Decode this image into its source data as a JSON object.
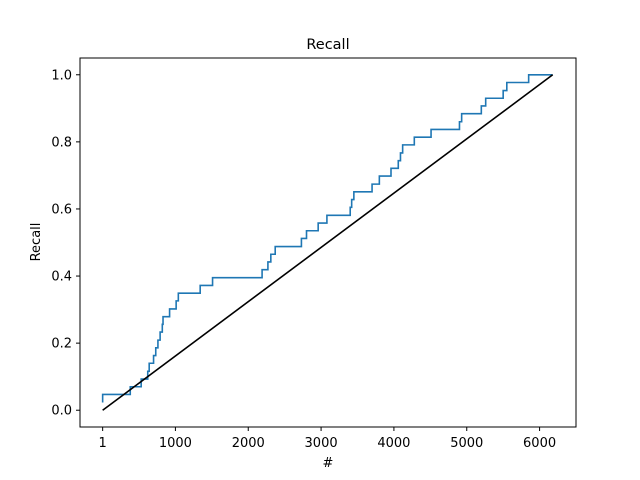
{
  "chart_data": {
    "type": "line",
    "title": "Recall",
    "xlabel": "#",
    "ylabel": "Recall",
    "xlim": [
      -310,
      6500
    ],
    "ylim": [
      -0.05,
      1.05
    ],
    "xticks": [
      1,
      1000,
      2000,
      3000,
      4000,
      5000,
      6000
    ],
    "xtick_labels": [
      "1",
      "1000",
      "2000",
      "3000",
      "4000",
      "5000",
      "6000"
    ],
    "yticks": [
      0.0,
      0.2,
      0.4,
      0.6,
      0.8,
      1.0
    ],
    "ytick_labels": [
      "0.0",
      "0.2",
      "0.4",
      "0.6",
      "0.8",
      "1.0"
    ],
    "grid": false,
    "series": [
      {
        "style": "step",
        "color": "#1f77b4",
        "points": [
          [
            1,
            0.023
          ],
          [
            1,
            0.047
          ],
          [
            380,
            0.047
          ],
          [
            380,
            0.07
          ],
          [
            530,
            0.07
          ],
          [
            530,
            0.093
          ],
          [
            620,
            0.093
          ],
          [
            620,
            0.116
          ],
          [
            640,
            0.116
          ],
          [
            640,
            0.14
          ],
          [
            700,
            0.14
          ],
          [
            700,
            0.163
          ],
          [
            730,
            0.163
          ],
          [
            730,
            0.186
          ],
          [
            760,
            0.186
          ],
          [
            760,
            0.209
          ],
          [
            790,
            0.209
          ],
          [
            790,
            0.233
          ],
          [
            820,
            0.233
          ],
          [
            820,
            0.256
          ],
          [
            830,
            0.256
          ],
          [
            830,
            0.279
          ],
          [
            920,
            0.279
          ],
          [
            920,
            0.302
          ],
          [
            1010,
            0.302
          ],
          [
            1010,
            0.326
          ],
          [
            1040,
            0.326
          ],
          [
            1040,
            0.349
          ],
          [
            1340,
            0.349
          ],
          [
            1340,
            0.372
          ],
          [
            1510,
            0.372
          ],
          [
            1510,
            0.395
          ],
          [
            2190,
            0.395
          ],
          [
            2190,
            0.419
          ],
          [
            2270,
            0.419
          ],
          [
            2270,
            0.442
          ],
          [
            2310,
            0.442
          ],
          [
            2310,
            0.465
          ],
          [
            2370,
            0.465
          ],
          [
            2370,
            0.488
          ],
          [
            2730,
            0.488
          ],
          [
            2730,
            0.512
          ],
          [
            2800,
            0.512
          ],
          [
            2800,
            0.535
          ],
          [
            2960,
            0.535
          ],
          [
            2960,
            0.558
          ],
          [
            3080,
            0.558
          ],
          [
            3080,
            0.581
          ],
          [
            3400,
            0.581
          ],
          [
            3400,
            0.605
          ],
          [
            3420,
            0.605
          ],
          [
            3420,
            0.628
          ],
          [
            3450,
            0.628
          ],
          [
            3450,
            0.651
          ],
          [
            3700,
            0.651
          ],
          [
            3700,
            0.674
          ],
          [
            3800,
            0.674
          ],
          [
            3800,
            0.698
          ],
          [
            3960,
            0.698
          ],
          [
            3960,
            0.721
          ],
          [
            4060,
            0.721
          ],
          [
            4060,
            0.744
          ],
          [
            4090,
            0.744
          ],
          [
            4090,
            0.767
          ],
          [
            4120,
            0.767
          ],
          [
            4120,
            0.791
          ],
          [
            4280,
            0.791
          ],
          [
            4280,
            0.814
          ],
          [
            4510,
            0.814
          ],
          [
            4510,
            0.837
          ],
          [
            4900,
            0.837
          ],
          [
            4900,
            0.86
          ],
          [
            4930,
            0.86
          ],
          [
            4930,
            0.884
          ],
          [
            5200,
            0.884
          ],
          [
            5200,
            0.907
          ],
          [
            5260,
            0.907
          ],
          [
            5260,
            0.93
          ],
          [
            5500,
            0.93
          ],
          [
            5500,
            0.953
          ],
          [
            5550,
            0.953
          ],
          [
            5550,
            0.977
          ],
          [
            5850,
            0.977
          ],
          [
            5850,
            1.0
          ],
          [
            6180,
            1.0
          ]
        ]
      },
      {
        "style": "line",
        "color": "#000000",
        "points": [
          [
            1,
            0.0
          ],
          [
            6180,
            1.0
          ]
        ]
      }
    ]
  }
}
